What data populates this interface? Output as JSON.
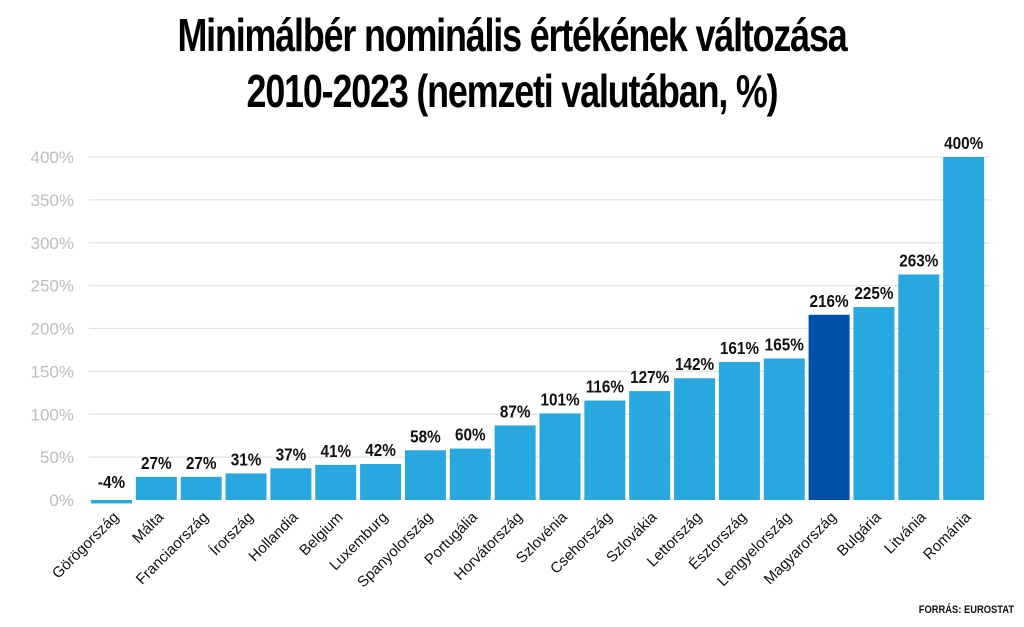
{
  "chart_data": {
    "type": "bar",
    "title": "Minimálbér nominális értékének változása",
    "subtitle": "2010-2023 (nemzeti valutában, %)",
    "xlabel": "",
    "ylabel": "",
    "ylim": [
      0,
      400
    ],
    "yticks": [
      0,
      50,
      100,
      150,
      200,
      250,
      300,
      350,
      400
    ],
    "ytick_labels": [
      "0%",
      "50%",
      "100%",
      "150%",
      "200%",
      "250%",
      "300%",
      "350%",
      "400%"
    ],
    "grid": true,
    "legend": "none",
    "categories": [
      "Görögország",
      "Málta",
      "Franciaország",
      "Írország",
      "Hollandia",
      "Belgium",
      "Luxemburg",
      "Spanyolország",
      "Portugália",
      "Horvátország",
      "Szlovénia",
      "Csehország",
      "Szlovákia",
      "Lettország",
      "Észtország",
      "Lengyelország",
      "Magyarország",
      "Bulgária",
      "Litvánia",
      "Románia"
    ],
    "values": [
      -4,
      27,
      27,
      31,
      37,
      41,
      42,
      58,
      60,
      87,
      101,
      116,
      127,
      142,
      161,
      165,
      216,
      225,
      263,
      400
    ],
    "value_labels": [
      "-4%",
      "27%",
      "27%",
      "31%",
      "37%",
      "41%",
      "42%",
      "58%",
      "60%",
      "87%",
      "101%",
      "116%",
      "127%",
      "142%",
      "161%",
      "165%",
      "216%",
      "225%",
      "263%",
      "400%"
    ],
    "highlight_category": "Magyarország",
    "colors": {
      "bar": "#29a8e0",
      "highlight": "#0050a8",
      "grid": "#e3e3e3",
      "tick_text": "#bdbdbd"
    }
  },
  "source": "FORRÁS: EUROSTAT"
}
